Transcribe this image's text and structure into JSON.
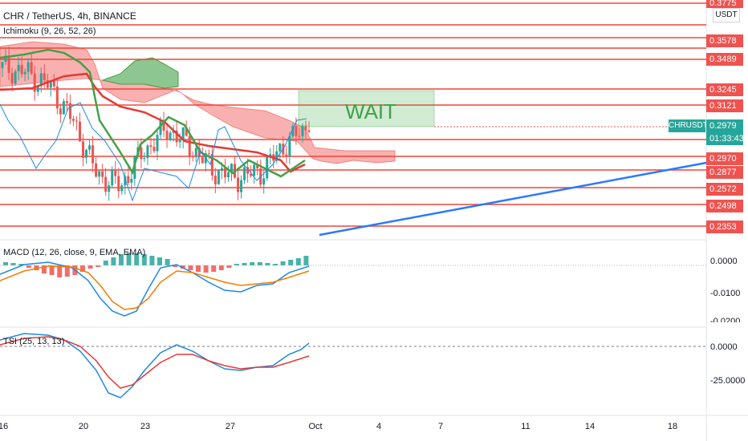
{
  "header": {
    "symbol_title": "CHR / TetherUS, 4h, BINANCE",
    "currency": "USDT",
    "ichimoku_label": "Ichimoku (9, 26, 52, 26)",
    "macd_label": "MACD (12, 26, close, 9, EMA, EMA)",
    "tsi_label": "TSI (25, 13, 13)"
  },
  "annotation": {
    "text": "WAIT",
    "color": "#43a047"
  },
  "price_scale": {
    "levels": [
      "0.3578",
      "0.3489",
      "0.3245",
      "0.3121",
      "0.2970",
      "0.2877",
      "0.2572",
      "0.2498",
      "0.2353"
    ],
    "top_cut": "0.3775",
    "current": {
      "symbol": "CHRUSDT",
      "price": "0.2979",
      "countdown": "01:33:43"
    }
  },
  "macd_scale": [
    "0.0000",
    "-0.0100",
    "-0.0200"
  ],
  "tsi_scale": [
    "0.0000",
    "-25.0000"
  ],
  "time_axis": [
    "16",
    "20",
    "23",
    "27",
    "Oct",
    "4",
    "7",
    "11",
    "14",
    "18"
  ],
  "colors": {
    "up": "#26a69a",
    "down": "#ef5350",
    "level_line": "#f44336",
    "trendline": "#2962ff"
  },
  "chart_data": [
    {
      "type": "candlestick",
      "title": "CHR / TetherUS, 4h, BINANCE",
      "x_dates": [
        "16",
        "20",
        "23",
        "27",
        "Oct",
        "4",
        "7",
        "11",
        "14",
        "18"
      ],
      "horizontal_levels": [
        0.3578,
        0.3489,
        0.3245,
        0.3121,
        0.297,
        0.2877,
        0.2572,
        0.2498,
        0.2353
      ],
      "last_price": 0.2979,
      "approx_close_path": [
        0.34,
        0.337,
        0.328,
        0.305,
        0.27,
        0.262,
        0.285,
        0.3,
        0.288,
        0.272,
        0.268,
        0.272,
        0.29,
        0.302
      ]
    },
    {
      "type": "line",
      "title": "MACD (12, 26, close, 9, EMA, EMA)",
      "ticks": [
        0.0,
        -0.01,
        -0.02
      ]
    },
    {
      "type": "line",
      "title": "TSI (25, 13, 13)",
      "ticks": [
        0.0,
        -25.0
      ]
    }
  ]
}
